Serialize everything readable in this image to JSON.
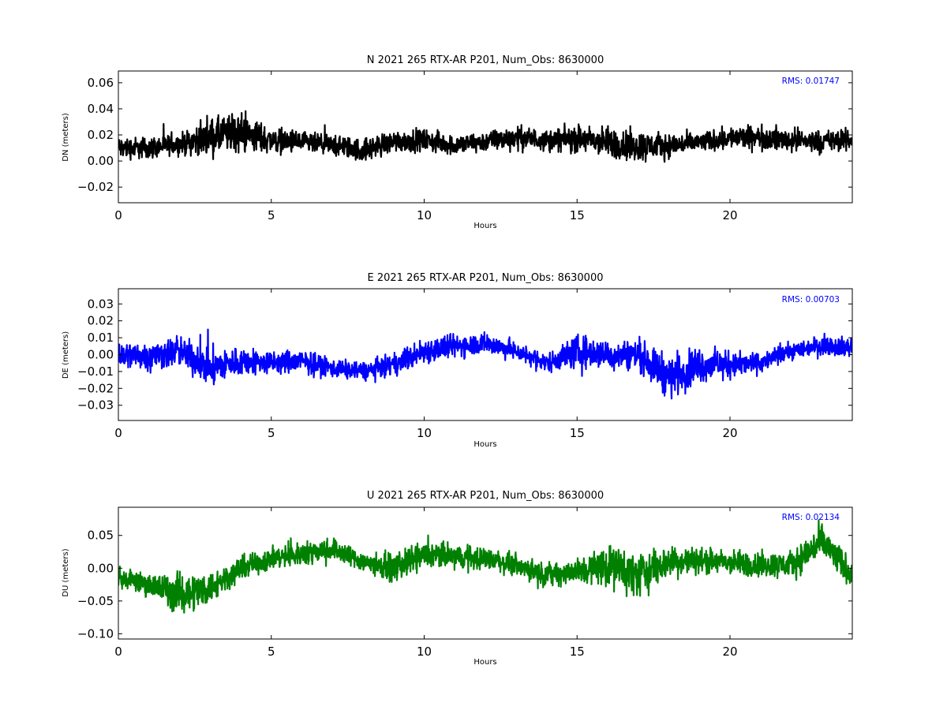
{
  "chart_data": [
    {
      "type": "line",
      "title": "N 2021 265 RTX-AR  P201, Num_Obs: 8630000",
      "xlabel": "Hours",
      "ylabel": "DN (meters)",
      "xlim": [
        0,
        24
      ],
      "ylim": [
        -0.032,
        0.069
      ],
      "xticks": [
        0,
        5,
        10,
        15,
        20
      ],
      "yticks": [
        -0.02,
        0.0,
        0.02,
        0.04,
        0.06
      ],
      "ytick_labels": [
        "−0.02",
        "0.00",
        "0.02",
        "0.04",
        "0.06"
      ],
      "rms_label": "RMS:  0.01747",
      "color": "#000000",
      "grid": false,
      "series": [
        {
          "x": [
            0,
            1,
            2,
            3,
            4,
            5,
            6,
            7,
            8,
            9,
            10,
            11,
            12,
            13,
            14,
            15,
            16,
            17,
            18,
            19,
            20,
            21,
            22,
            23,
            24
          ],
          "center": [
            0.01,
            0.01,
            0.013,
            0.018,
            0.022,
            0.016,
            0.014,
            0.012,
            0.008,
            0.015,
            0.016,
            0.012,
            0.015,
            0.018,
            0.016,
            0.017,
            0.014,
            0.011,
            0.012,
            0.014,
            0.018,
            0.018,
            0.016,
            0.015,
            0.016
          ],
          "amplitude": [
            0.012,
            0.012,
            0.011,
            0.02,
            0.022,
            0.014,
            0.012,
            0.011,
            0.013,
            0.012,
            0.012,
            0.011,
            0.011,
            0.013,
            0.011,
            0.015,
            0.017,
            0.018,
            0.013,
            0.011,
            0.012,
            0.013,
            0.013,
            0.012,
            0.012
          ]
        }
      ]
    },
    {
      "type": "line",
      "title": "E 2021 265 RTX-AR  P201, Num_Obs: 8630000",
      "xlabel": "Hours",
      "ylabel": "DE (meters)",
      "xlim": [
        0,
        24
      ],
      "ylim": [
        -0.039,
        0.039
      ],
      "xticks": [
        0,
        5,
        10,
        15,
        20
      ],
      "yticks": [
        -0.03,
        -0.02,
        -0.01,
        0.0,
        0.01,
        0.02,
        0.03
      ],
      "ytick_labels": [
        "−0.03",
        "−0.02",
        "−0.01",
        "0.00",
        "0.01",
        "0.02",
        "0.03"
      ],
      "rms_label": "RMS:  0.00703",
      "color": "#0000ff",
      "grid": false,
      "series": [
        {
          "x": [
            0,
            1,
            2,
            3,
            4,
            5,
            6,
            7,
            8,
            9,
            10,
            11,
            12,
            13,
            14,
            15,
            16,
            17,
            18,
            19,
            20,
            21,
            22,
            23,
            24
          ],
          "center": [
            0.0,
            -0.001,
            0.002,
            -0.008,
            -0.004,
            -0.005,
            -0.004,
            -0.008,
            -0.01,
            -0.006,
            0.002,
            0.005,
            0.007,
            0.002,
            -0.005,
            0.002,
            0.0,
            0.0,
            -0.013,
            -0.006,
            -0.006,
            -0.005,
            0.002,
            0.006,
            0.004
          ],
          "amplitude": [
            0.012,
            0.012,
            0.013,
            0.016,
            0.012,
            0.01,
            0.01,
            0.008,
            0.008,
            0.009,
            0.011,
            0.01,
            0.009,
            0.008,
            0.008,
            0.014,
            0.012,
            0.013,
            0.018,
            0.015,
            0.011,
            0.008,
            0.007,
            0.008,
            0.009
          ]
        }
      ]
    },
    {
      "type": "line",
      "title": "U 2021 265 RTX-AR  P201, Num_Obs: 8630000",
      "xlabel": "Hours",
      "ylabel": "DU (meters)",
      "xlim": [
        0,
        24
      ],
      "ylim": [
        -0.108,
        0.093
      ],
      "xticks": [
        0,
        5,
        10,
        15,
        20
      ],
      "yticks": [
        -0.1,
        -0.05,
        0.0,
        0.05
      ],
      "ytick_labels": [
        "−0.10",
        "−0.05",
        "0.00",
        "0.05"
      ],
      "rms_label": "RMS:  0.02134",
      "color": "#008000",
      "grid": false,
      "series": [
        {
          "x": [
            0,
            1,
            2,
            3,
            4,
            5,
            6,
            7,
            8,
            9,
            10,
            11,
            12,
            13,
            14,
            15,
            16,
            17,
            18,
            19,
            20,
            21,
            22,
            23,
            24
          ],
          "center": [
            -0.015,
            -0.025,
            -0.04,
            -0.03,
            0.0,
            0.015,
            0.022,
            0.03,
            0.01,
            0.0,
            0.02,
            0.018,
            0.015,
            0.005,
            -0.01,
            -0.005,
            0.005,
            -0.01,
            0.01,
            0.012,
            0.008,
            0.005,
            0.005,
            0.04,
            -0.01
          ],
          "amplitude": [
            0.02,
            0.025,
            0.045,
            0.035,
            0.025,
            0.025,
            0.025,
            0.025,
            0.022,
            0.03,
            0.03,
            0.028,
            0.025,
            0.022,
            0.025,
            0.03,
            0.045,
            0.05,
            0.035,
            0.028,
            0.028,
            0.028,
            0.03,
            0.04,
            0.03
          ]
        }
      ]
    }
  ]
}
